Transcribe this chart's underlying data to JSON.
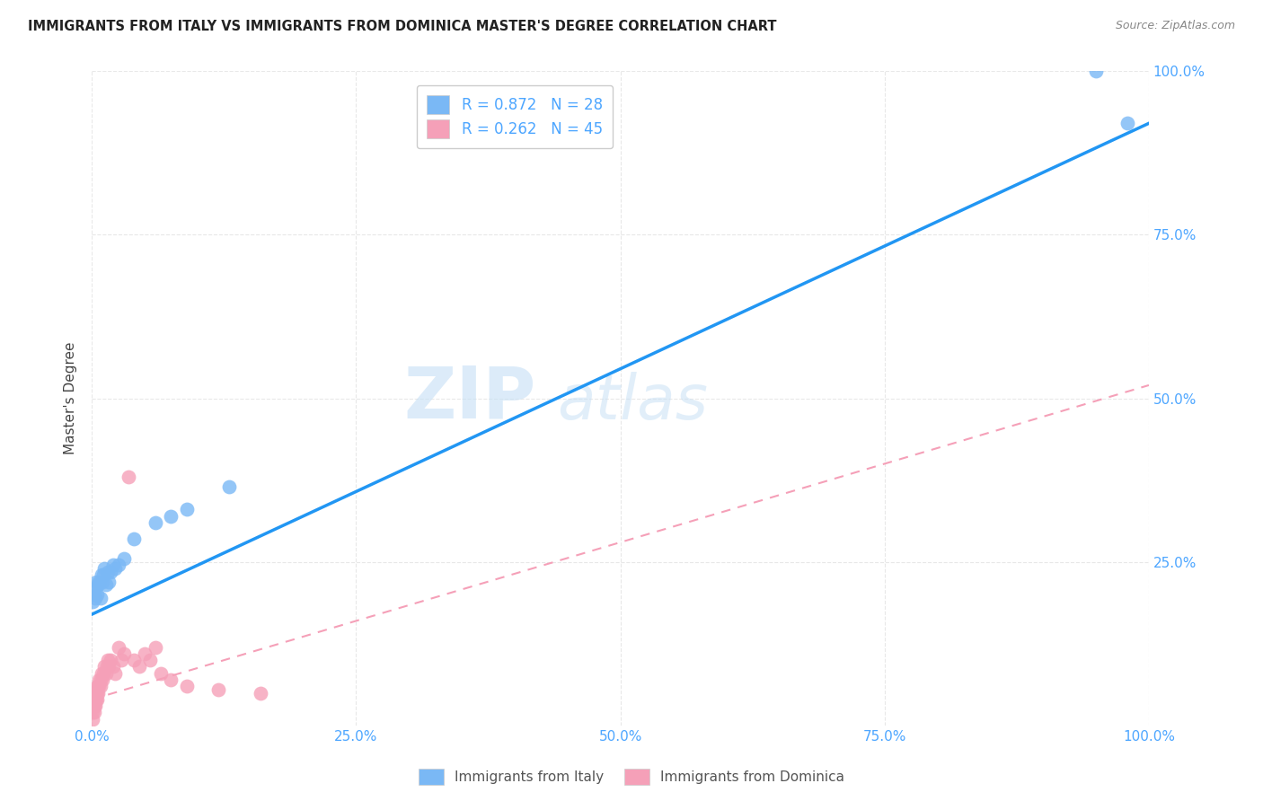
{
  "title": "IMMIGRANTS FROM ITALY VS IMMIGRANTS FROM DOMINICA MASTER'S DEGREE CORRELATION CHART",
  "source": "Source: ZipAtlas.com",
  "tick_color": "#4da6ff",
  "ylabel": "Master's Degree",
  "xlim": [
    0,
    1.0
  ],
  "ylim": [
    0,
    1.0
  ],
  "xtick_labels": [
    "0.0%",
    "25.0%",
    "50.0%",
    "75.0%",
    "100.0%"
  ],
  "xtick_vals": [
    0.0,
    0.25,
    0.5,
    0.75,
    1.0
  ],
  "ytick_labels": [
    "25.0%",
    "50.0%",
    "75.0%",
    "100.0%"
  ],
  "ytick_vals": [
    0.25,
    0.5,
    0.75,
    1.0
  ],
  "italy_color": "#7ab8f5",
  "dominica_color": "#f5a0b8",
  "italy_line_color": "#2196F3",
  "dominica_line_color": "#f5a0b8",
  "italy_R": 0.872,
  "italy_N": 28,
  "dominica_R": 0.262,
  "dominica_N": 45,
  "legend_text_color": "#4da6ff",
  "watermark_zip": "ZIP",
  "watermark_atlas": "atlas",
  "grid_color": "#e8e8e8",
  "background_color": "#ffffff",
  "italy_scatter_x": [
    0.001,
    0.002,
    0.003,
    0.003,
    0.004,
    0.005,
    0.006,
    0.007,
    0.008,
    0.009,
    0.01,
    0.011,
    0.012,
    0.013,
    0.015,
    0.016,
    0.018,
    0.02,
    0.022,
    0.025,
    0.03,
    0.04,
    0.06,
    0.075,
    0.09,
    0.13,
    0.98,
    0.95
  ],
  "italy_scatter_y": [
    0.19,
    0.2,
    0.195,
    0.21,
    0.22,
    0.2,
    0.215,
    0.22,
    0.195,
    0.23,
    0.22,
    0.23,
    0.24,
    0.215,
    0.235,
    0.22,
    0.235,
    0.245,
    0.24,
    0.245,
    0.255,
    0.285,
    0.31,
    0.32,
    0.33,
    0.365,
    0.92,
    1.0
  ],
  "dominica_scatter_x": [
    0.001,
    0.001,
    0.001,
    0.002,
    0.002,
    0.002,
    0.003,
    0.003,
    0.003,
    0.004,
    0.004,
    0.005,
    0.005,
    0.005,
    0.006,
    0.006,
    0.007,
    0.007,
    0.008,
    0.008,
    0.009,
    0.01,
    0.011,
    0.012,
    0.013,
    0.014,
    0.015,
    0.016,
    0.018,
    0.02,
    0.022,
    0.025,
    0.028,
    0.03,
    0.035,
    0.04,
    0.045,
    0.05,
    0.055,
    0.06,
    0.065,
    0.075,
    0.09,
    0.12,
    0.16
  ],
  "dominica_scatter_y": [
    0.01,
    0.02,
    0.03,
    0.02,
    0.03,
    0.04,
    0.03,
    0.04,
    0.05,
    0.04,
    0.05,
    0.04,
    0.05,
    0.06,
    0.05,
    0.06,
    0.06,
    0.07,
    0.06,
    0.07,
    0.08,
    0.07,
    0.08,
    0.09,
    0.08,
    0.09,
    0.1,
    0.09,
    0.1,
    0.09,
    0.08,
    0.12,
    0.1,
    0.11,
    0.38,
    0.1,
    0.09,
    0.11,
    0.1,
    0.12,
    0.08,
    0.07,
    0.06,
    0.055,
    0.05
  ],
  "italy_line_x": [
    0.0,
    1.0
  ],
  "italy_line_y": [
    0.17,
    0.92
  ],
  "dominica_line_x": [
    0.0,
    1.0
  ],
  "dominica_line_y": [
    0.04,
    0.52
  ]
}
